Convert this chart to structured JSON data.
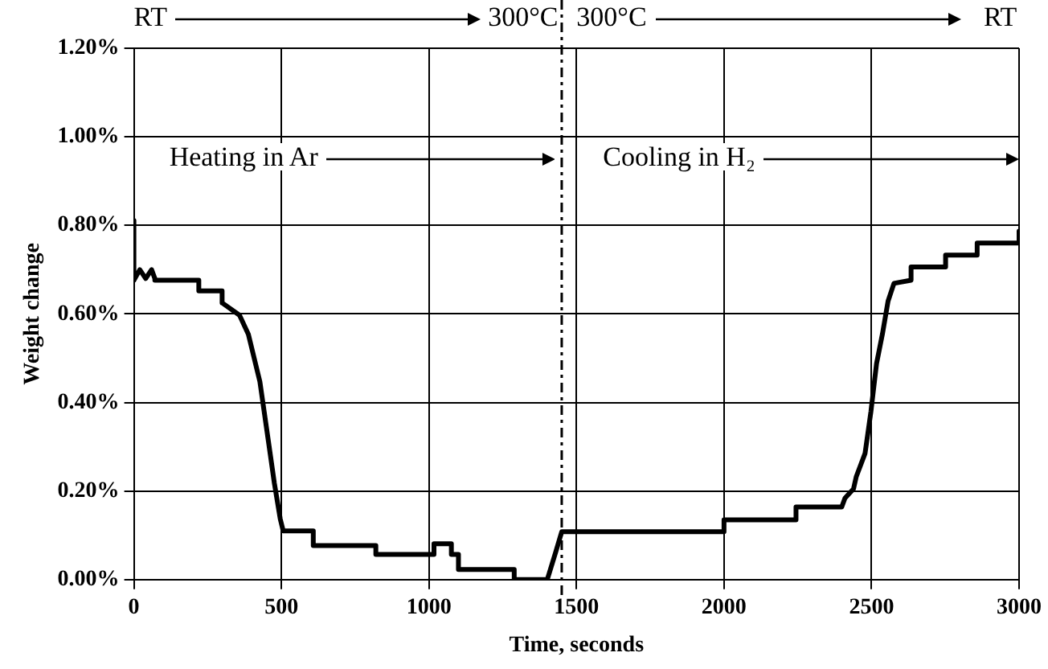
{
  "chart_data": {
    "type": "line",
    "xlabel": "Time, seconds",
    "ylabel": "Weight change",
    "x": [
      0,
      0,
      20,
      40,
      60,
      71,
      71,
      220,
      220,
      299,
      299,
      358,
      388,
      427,
      456,
      476,
      496,
      506,
      608,
      608,
      820,
      820,
      1017,
      1017,
      1076,
      1076,
      1100,
      1100,
      1289,
      1289,
      1401,
      1430,
      1450,
      2000,
      2000,
      2244,
      2244,
      2399,
      2410,
      2439,
      2448,
      2478,
      2498,
      2517,
      2537,
      2556,
      2576,
      2634,
      2634,
      2751,
      2751,
      2858,
      2858,
      3000,
      3000
    ],
    "series": [
      {
        "color": "#000000",
        "values": [
          0.811,
          0.676,
          0.7,
          0.68,
          0.7,
          0.68,
          0.676,
          0.676,
          0.652,
          0.652,
          0.625,
          0.597,
          0.554,
          0.447,
          0.312,
          0.218,
          0.137,
          0.11,
          0.11,
          0.077,
          0.077,
          0.057,
          0.057,
          0.081,
          0.081,
          0.057,
          0.057,
          0.023,
          0.023,
          0,
          0,
          0.063,
          0.108,
          0.108,
          0.135,
          0.135,
          0.164,
          0.164,
          0.184,
          0.205,
          0.232,
          0.285,
          0.38,
          0.488,
          0.555,
          0.629,
          0.669,
          0.676,
          0.706,
          0.706,
          0.733,
          0.733,
          0.76,
          0.76,
          0.787
        ]
      }
    ],
    "xlim": [
      0,
      3000
    ],
    "xticks": [
      0,
      500,
      1000,
      1500,
      2000,
      2500,
      3000
    ],
    "ylim": [
      0,
      1.2
    ],
    "yticks": [
      {
        "value": 0,
        "label": "0.00%"
      },
      {
        "value": 0.2,
        "label": "0.20%"
      },
      {
        "value": 0.4,
        "label": "0.40%"
      },
      {
        "value": 0.6,
        "label": "0.60%"
      },
      {
        "value": 0.8,
        "label": "0.80%"
      },
      {
        "value": 1,
        "label": "1.00%"
      },
      {
        "value": 1.2,
        "label": "1.20%"
      }
    ],
    "grid": true,
    "legend": false,
    "marker": "none",
    "line_style": "solid",
    "ref_lines": [
      {
        "axis": "x",
        "value": 1450,
        "color": "#000000",
        "line_style": "dashed"
      }
    ],
    "annotations": [
      "RT",
      "300°C",
      "300°C",
      "RT",
      "Heating in Ar",
      "Cooling in H₂"
    ]
  }
}
